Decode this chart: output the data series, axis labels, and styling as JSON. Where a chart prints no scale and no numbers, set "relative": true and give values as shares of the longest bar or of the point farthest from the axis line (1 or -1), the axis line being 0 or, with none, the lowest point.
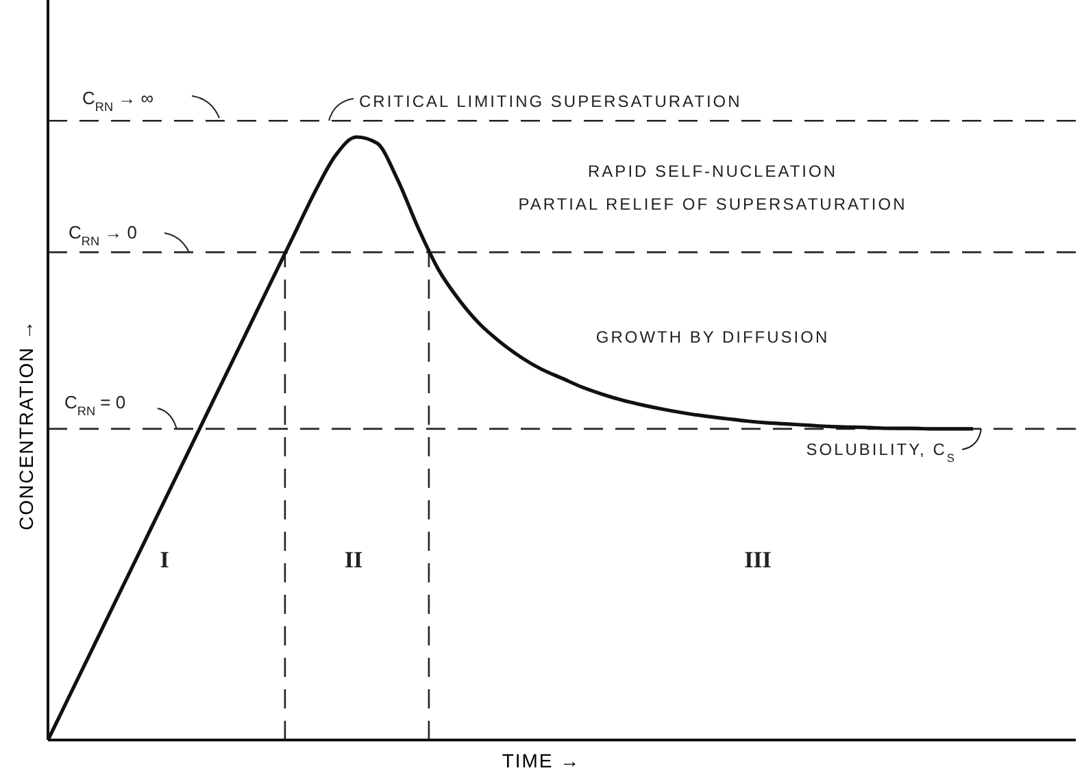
{
  "chart_data": {
    "type": "line",
    "relative": true,
    "xlabel": "TIME →",
    "ylabel": "CONCENTRATION →",
    "categories": [
      null,
      null,
      null,
      null,
      null,
      null,
      null,
      null,
      null,
      null,
      null,
      null,
      null,
      null,
      null,
      null,
      null,
      null,
      null,
      null,
      null,
      null,
      null,
      null,
      null,
      null,
      null,
      null,
      null,
      null,
      null,
      null,
      null,
      null,
      null,
      null,
      null,
      null,
      null,
      null,
      null,
      null,
      null,
      null,
      null,
      null,
      null,
      null,
      null,
      null,
      null
    ],
    "series": [
      {
        "color": "#111111",
        "values": [
          0,
          0.07,
          0.14,
          0.21,
          0.28,
          0.35,
          0.42,
          0.49,
          0.56,
          0.63,
          0.7,
          0.77,
          0.84,
          0.91,
          0.97,
          1,
          0.99,
          0.93,
          0.85,
          0.78,
          0.73,
          0.69,
          0.66,
          0.635,
          0.615,
          0.6,
          0.585,
          0.573,
          0.563,
          0.555,
          0.548,
          0.542,
          0.537,
          0.533,
          0.529,
          0.526,
          0.524,
          0.522,
          0.52,
          0.519,
          0.518,
          0.517,
          0.517,
          0.516,
          0.516,
          0.516,
          null,
          null,
          null,
          null,
          null
        ]
      }
    ],
    "line_style": "solid",
    "ref_lines": [
      {
        "axis": "y",
        "value": 1.027,
        "line_style": "dashed"
      },
      {
        "axis": "y",
        "value": 0.809,
        "line_style": "dashed"
      },
      {
        "axis": "y",
        "value": 0.516,
        "line_style": "dashed"
      }
    ],
    "annotations": [
      "C$_{RN}$ → ∞",
      "CRITICAL LIMITING SUPERSATURATION",
      "C$_{RN}$ → 0",
      "RAPID SELF-NUCLEATION",
      "PARTIAL RELIEF OF SUPERSATURATION",
      "C$_{RN}$ = 0",
      "GROWTH BY DIFFUSION",
      "SOLUBILITY, C$_{S}$",
      "I",
      "II",
      "III"
    ]
  }
}
